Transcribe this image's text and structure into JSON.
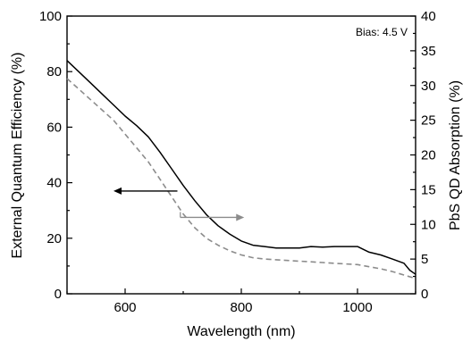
{
  "chart_data": {
    "type": "line",
    "xlabel": "Wavelength (nm)",
    "ylabel_left": "External Quantum Efficiency (%)",
    "ylabel_right": "PbS QD Absorption (%)",
    "annotation": "Bias: 4.5 V",
    "xlim": [
      500,
      1100
    ],
    "ylim_left": [
      0,
      100
    ],
    "ylim_right": [
      0,
      40
    ],
    "x_ticks": [
      600,
      800,
      1000
    ],
    "y_left_ticks": [
      0,
      20,
      40,
      60,
      80,
      100
    ],
    "y_right_ticks": [
      0,
      5,
      10,
      15,
      20,
      25,
      30,
      35,
      40
    ],
    "grid": false,
    "series": [
      {
        "axis": "left",
        "style": "solid",
        "color": "#000000",
        "x": [
          500,
          520,
          540,
          560,
          580,
          600,
          620,
          640,
          660,
          680,
          700,
          720,
          740,
          760,
          780,
          800,
          820,
          840,
          860,
          880,
          900,
          920,
          940,
          960,
          980,
          1000,
          1020,
          1040,
          1060,
          1080,
          1090,
          1100
        ],
        "y": [
          84,
          80,
          76,
          72,
          68,
          64,
          60.5,
          56.5,
          51,
          45,
          39,
          33.5,
          28.5,
          24.5,
          21.5,
          19,
          17.5,
          17,
          16.5,
          16.5,
          16.5,
          17,
          16.8,
          17,
          17,
          17,
          15,
          14,
          12.5,
          11,
          8.5,
          7
        ]
      },
      {
        "axis": "right",
        "style": "dashed",
        "color": "#8c8c8c",
        "x": [
          500,
          520,
          540,
          560,
          580,
          600,
          620,
          640,
          660,
          680,
          700,
          720,
          740,
          760,
          780,
          800,
          820,
          840,
          860,
          880,
          900,
          920,
          940,
          960,
          980,
          1000,
          1020,
          1040,
          1060,
          1080,
          1100
        ],
        "y": [
          31,
          29.5,
          28,
          26.5,
          25,
          23,
          21,
          19,
          16.5,
          14,
          11.5,
          9.5,
          8,
          7,
          6.2,
          5.6,
          5.2,
          5,
          4.9,
          4.8,
          4.7,
          4.6,
          4.5,
          4.4,
          4.3,
          4.2,
          3.9,
          3.6,
          3.2,
          2.7,
          2.2
        ]
      }
    ],
    "arrows": [
      {
        "from_x": 690,
        "to_x": 580,
        "y": 37,
        "axis": "left",
        "color": "#000000",
        "meaning": "points to left axis"
      },
      {
        "from_x": 695,
        "to_x": 805,
        "y": 11,
        "axis": "right",
        "color": "#8c8c8c",
        "meaning": "points to right axis"
      }
    ]
  }
}
